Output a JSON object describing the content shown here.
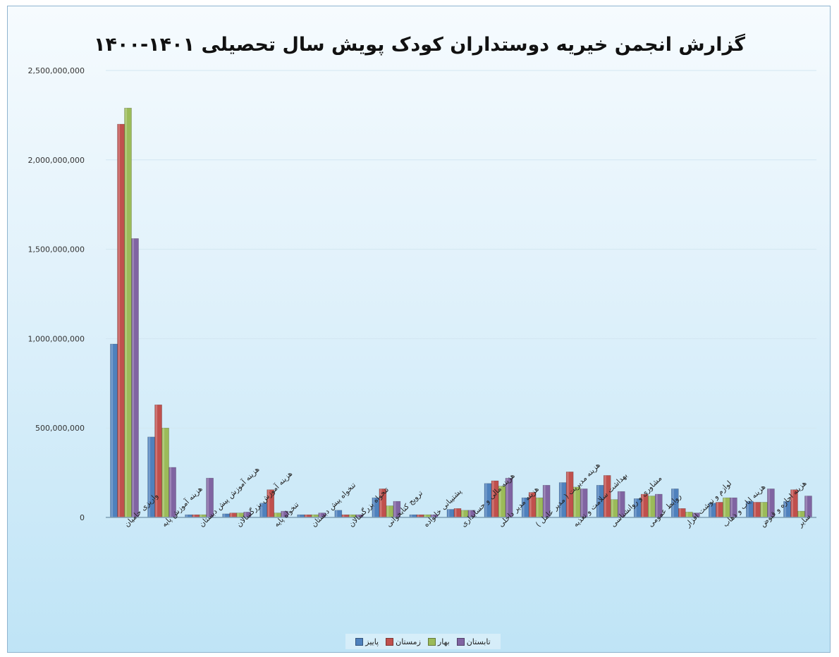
{
  "chart_data": {
    "type": "bar",
    "title": "گزارش انجمن خیریه دوستداران کودک پویش سال تحصیلی ۱۴۰۱-۱۴۰۰",
    "ylim": [
      0,
      2500000000
    ],
    "yticks": [
      "0",
      "500,000,000",
      "1,000,000,000",
      "1,500,000,000",
      "2,000,000,000",
      "2,500,000,000"
    ],
    "grid": true,
    "legend_position": "bottom",
    "categories": [
      "واریزی حامیان",
      "هزینه آموزش پایه",
      "هزینه آموزش پیش دبستان",
      "هزینه آموزش بزرگسالان",
      "تنخواه پایه",
      "تنخواه پیش دبستان",
      "تنخواه بزرگسالان",
      "ترویج کتابخوانی",
      "پشتیبانی خانواده",
      "هزینه مالی و حسابداری",
      "هزینه مدیر داخلی",
      "هزینه مدیریت ( مدیر عامل )",
      "بهداشت سلامت و تغذیه",
      "مشاوری و روانشناسی",
      "روابط عمومی",
      "لوازم و نوشت افزار",
      "هزینه ایاب و ذهاب",
      "هزینه اجاره و قبوض",
      "سایر"
    ],
    "series": [
      {
        "name": "پاییز",
        "color": "#4f81bd",
        "values": [
          970000000,
          450000000,
          15000000,
          20000000,
          80000000,
          15000000,
          40000000,
          110000000,
          15000000,
          45000000,
          190000000,
          110000000,
          195000000,
          180000000,
          105000000,
          160000000,
          80000000,
          90000000,
          90000000
        ]
      },
      {
        "name": "زمستان",
        "color": "#c0504d",
        "values": [
          2200000000,
          630000000,
          15000000,
          25000000,
          155000000,
          15000000,
          15000000,
          160000000,
          15000000,
          50000000,
          205000000,
          140000000,
          255000000,
          235000000,
          130000000,
          50000000,
          85000000,
          85000000,
          155000000
        ]
      },
      {
        "name": "بهار",
        "color": "#9bbb59",
        "values": [
          2290000000,
          500000000,
          15000000,
          25000000,
          25000000,
          15000000,
          15000000,
          65000000,
          15000000,
          40000000,
          175000000,
          110000000,
          170000000,
          100000000,
          120000000,
          30000000,
          110000000,
          85000000,
          35000000
        ]
      },
      {
        "name": "تابستان",
        "color": "#8064a2",
        "values": [
          1560000000,
          280000000,
          220000000,
          30000000,
          35000000,
          25000000,
          15000000,
          90000000,
          15000000,
          40000000,
          220000000,
          180000000,
          160000000,
          145000000,
          130000000,
          25000000,
          110000000,
          160000000,
          120000000
        ]
      }
    ]
  }
}
